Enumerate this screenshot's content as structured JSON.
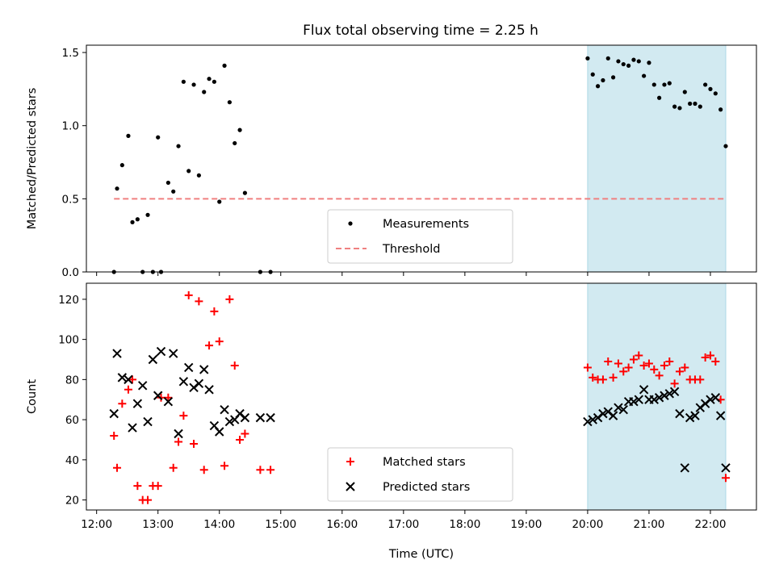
{
  "title": "Flux total observing time = 2.25 h",
  "chart_data": [
    {
      "type": "scatter",
      "panel": "top",
      "ylabel": "Matched/Predicted stars",
      "ylim": [
        0,
        1.55
      ],
      "yticks": [
        0,
        0.5,
        1.0,
        1.5
      ],
      "ytick_labels": [
        "0.0",
        "0.5",
        "1.0",
        "1.5"
      ],
      "xlim": [
        "11:50",
        "22:45"
      ],
      "xtick_labels": [],
      "grid": false,
      "legend_position": "lower-center",
      "shaded_interval": [
        "20:00",
        "22:15"
      ],
      "shade_color": "#add8e6",
      "threshold": {
        "name": "Threshold",
        "y": 0.5,
        "x_range": [
          "12:17",
          "22:15"
        ],
        "color": "#f08080",
        "style": "dashed"
      },
      "series": [
        {
          "name": "Measurements",
          "marker": "dot",
          "color": "#000000",
          "x": [
            "12:17",
            "12:20",
            "12:25",
            "12:31",
            "12:35",
            "12:40",
            "12:45",
            "12:50",
            "12:55",
            "13:00",
            "13:03",
            "13:10",
            "13:15",
            "13:20",
            "13:25",
            "13:30",
            "13:35",
            "13:40",
            "13:45",
            "13:50",
            "13:55",
            "14:00",
            "14:05",
            "14:10",
            "14:15",
            "14:20",
            "14:25",
            "14:40",
            "14:50",
            "20:00",
            "20:05",
            "20:10",
            "20:15",
            "20:20",
            "20:25",
            "20:30",
            "20:35",
            "20:40",
            "20:45",
            "20:50",
            "20:55",
            "21:00",
            "21:05",
            "21:10",
            "21:15",
            "21:20",
            "21:25",
            "21:30",
            "21:35",
            "21:40",
            "21:45",
            "21:50",
            "21:55",
            "22:00",
            "22:05",
            "22:10",
            "22:15"
          ],
          "y": [
            0.0,
            0.57,
            0.73,
            0.93,
            0.34,
            0.36,
            0.0,
            0.39,
            0.0,
            0.92,
            0.0,
            0.61,
            0.55,
            0.86,
            1.3,
            0.69,
            1.28,
            0.66,
            1.23,
            1.32,
            1.3,
            0.48,
            1.41,
            1.16,
            0.88,
            0.97,
            0.54,
            0.0,
            0.0,
            1.46,
            1.35,
            1.27,
            1.31,
            1.46,
            1.33,
            1.44,
            1.42,
            1.41,
            1.45,
            1.44,
            1.34,
            1.43,
            1.28,
            1.19,
            1.28,
            1.29,
            1.13,
            1.12,
            1.23,
            1.15,
            1.15,
            1.13,
            1.28,
            1.25,
            1.22,
            1.11,
            0.86
          ]
        }
      ]
    },
    {
      "type": "scatter",
      "panel": "bottom",
      "xlabel": "Time (UTC)",
      "ylabel": "Count",
      "ylim": [
        15,
        128
      ],
      "yticks": [
        20,
        40,
        60,
        80,
        100,
        120
      ],
      "ytick_labels": [
        "20",
        "40",
        "60",
        "80",
        "100",
        "120"
      ],
      "xlim": [
        "11:50",
        "22:45"
      ],
      "xtick_labels": [
        "12:00",
        "13:00",
        "14:00",
        "15:00",
        "16:00",
        "17:00",
        "18:00",
        "19:00",
        "20:00",
        "21:00",
        "22:00"
      ],
      "grid": false,
      "legend_position": "lower-center",
      "shaded_interval": [
        "20:00",
        "22:15"
      ],
      "shade_color": "#add8e6",
      "series": [
        {
          "name": "Matched stars",
          "marker": "plus",
          "color": "#ff0000",
          "x": [
            "12:17",
            "12:20",
            "12:25",
            "12:31",
            "12:35",
            "12:40",
            "12:45",
            "12:50",
            "12:55",
            "13:00",
            "13:03",
            "13:10",
            "13:15",
            "13:20",
            "13:25",
            "13:30",
            "13:35",
            "13:40",
            "13:45",
            "13:50",
            "13:55",
            "14:00",
            "14:05",
            "14:10",
            "14:15",
            "14:20",
            "14:25",
            "14:40",
            "14:50",
            "20:00",
            "20:05",
            "20:10",
            "20:15",
            "20:20",
            "20:25",
            "20:30",
            "20:35",
            "20:40",
            "20:45",
            "20:50",
            "20:55",
            "21:00",
            "21:05",
            "21:10",
            "21:15",
            "21:20",
            "21:25",
            "21:30",
            "21:35",
            "21:40",
            "21:45",
            "21:50",
            "21:55",
            "22:00",
            "22:05",
            "22:10",
            "22:15"
          ],
          "y": [
            52,
            36,
            68,
            75,
            80,
            27,
            20,
            20,
            27,
            27,
            71,
            71,
            36,
            49,
            62,
            122,
            48,
            119,
            35,
            97,
            114,
            99,
            37,
            120,
            87,
            50,
            53,
            35,
            35,
            86,
            81,
            80,
            80,
            89,
            81,
            88,
            84,
            86,
            90,
            92,
            87,
            88,
            85,
            82,
            87,
            89,
            78,
            84,
            86,
            80,
            80,
            80,
            91,
            92,
            89,
            70,
            31
          ]
        },
        {
          "name": "Predicted stars",
          "marker": "x",
          "color": "#000000",
          "x": [
            "12:17",
            "12:20",
            "12:25",
            "12:31",
            "12:35",
            "12:40",
            "12:45",
            "12:50",
            "12:55",
            "13:00",
            "13:03",
            "13:10",
            "13:15",
            "13:20",
            "13:25",
            "13:30",
            "13:35",
            "13:40",
            "13:45",
            "13:50",
            "13:55",
            "14:00",
            "14:05",
            "14:10",
            "14:15",
            "14:20",
            "14:25",
            "14:40",
            "14:50",
            "20:00",
            "20:05",
            "20:10",
            "20:15",
            "20:20",
            "20:25",
            "20:30",
            "20:35",
            "20:40",
            "20:45",
            "20:50",
            "20:55",
            "21:00",
            "21:05",
            "21:10",
            "21:15",
            "21:20",
            "21:25",
            "21:30",
            "21:35",
            "21:40",
            "21:45",
            "21:50",
            "21:55",
            "22:00",
            "22:05",
            "22:10",
            "22:15"
          ],
          "y": [
            63,
            93,
            81,
            80,
            56,
            68,
            77,
            59,
            90,
            72,
            94,
            69,
            93,
            53,
            79,
            86,
            76,
            78,
            85,
            75,
            57,
            54,
            65,
            59,
            60,
            63,
            61,
            61,
            61,
            59,
            60,
            61,
            63,
            64,
            62,
            66,
            65,
            69,
            69,
            70,
            75,
            70,
            70,
            71,
            72,
            73,
            74,
            63,
            36,
            61,
            62,
            66,
            68,
            70,
            71,
            62,
            36
          ]
        }
      ]
    }
  ]
}
